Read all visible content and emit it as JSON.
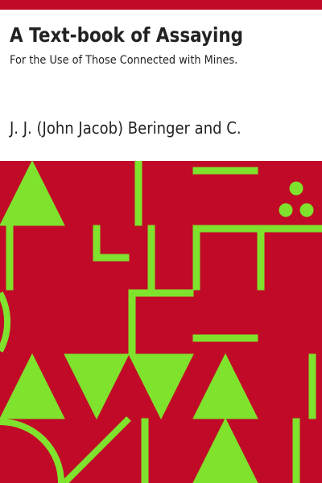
{
  "cover": {
    "title": "A Text-book of Assaying",
    "subtitle": "For the Use of Those Connected with Mines.",
    "author": "J. J. (John Jacob) Beringer and C."
  },
  "colors": {
    "accent_red": "#c00a27",
    "pattern_green": "#7fe22d",
    "text": "#222222",
    "background": "#ffffff"
  }
}
